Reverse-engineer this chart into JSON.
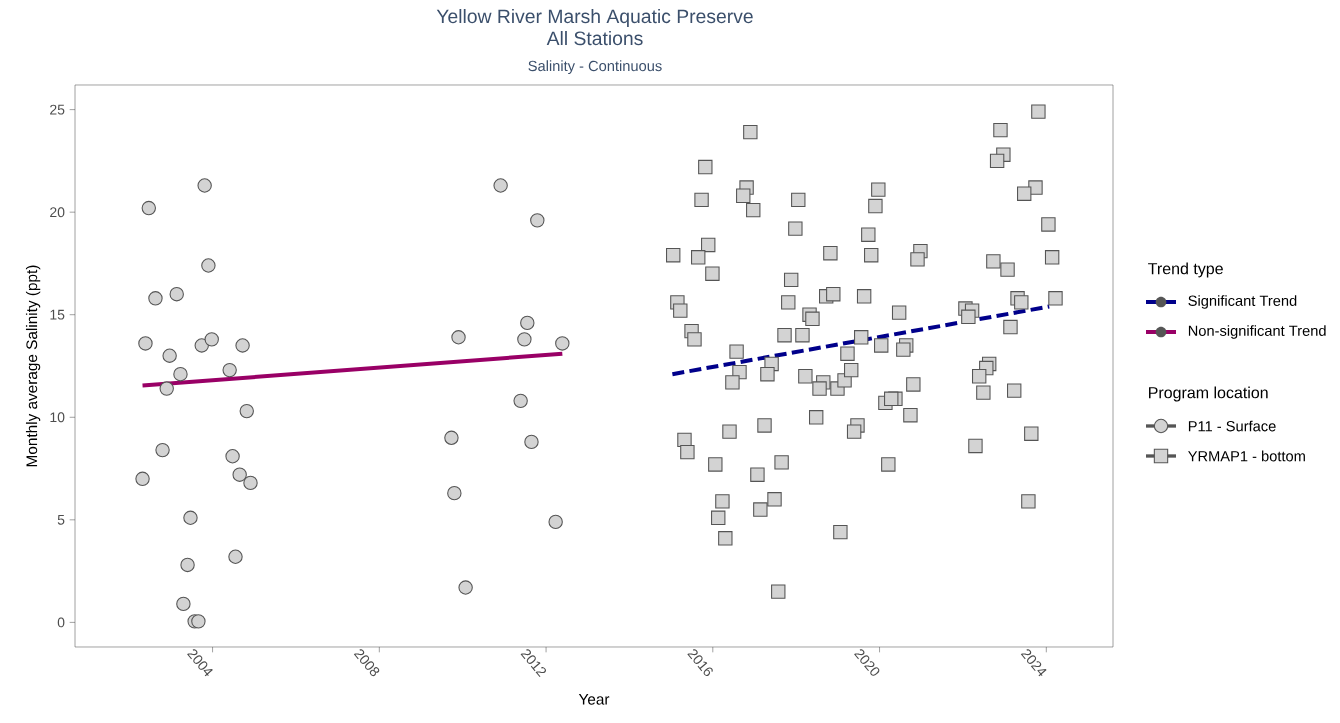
{
  "chart_data": {
    "type": "scatter",
    "title": "Yellow River Marsh Aquatic Preserve",
    "subtitle": "All Stations",
    "annotations": [
      "Salinity - Continuous",
      "Program location"
    ],
    "xlabel": "Year",
    "ylabel": "Monthly average Salinity (ppt)",
    "legend_title": "Trend type",
    "legend": "right",
    "xlim": [
      2000.7,
      2025.6
    ],
    "xticks": [
      2004,
      2008,
      2012,
      2016,
      2020,
      2024
    ],
    "ylim": [
      -1.2,
      26.2
    ],
    "yticks": [
      0,
      5,
      10,
      15,
      20,
      25
    ],
    "series": [
      {
        "name": "P11 - Surface",
        "marker": "circle",
        "color": "#d3d3d3",
        "x": [
          2002.32,
          2002.47,
          2002.39,
          2002.63,
          2002.8,
          2002.9,
          2002.97,
          2003.14,
          2003.23,
          2003.3,
          2003.4,
          2003.47,
          2003.57,
          2003.66,
          2003.74,
          2003.81,
          2003.9,
          2003.98,
          2004.41,
          2004.48,
          2004.55,
          2004.65,
          2004.72,
          2004.82,
          2004.91,
          2009.73,
          2009.8,
          2009.9,
          2010.07,
          2010.91,
          2011.39,
          2011.48,
          2011.55,
          2011.65,
          2011.79,
          2012.23,
          2012.39
        ],
        "values": [
          7.0,
          20.2,
          13.6,
          15.8,
          8.4,
          11.4,
          13.0,
          16.0,
          12.1,
          0.9,
          2.8,
          5.1,
          0.05,
          0.05,
          13.5,
          21.3,
          17.4,
          13.8,
          12.3,
          8.1,
          3.2,
          7.2,
          13.5,
          10.3,
          6.8,
          9.0,
          6.3,
          13.9,
          1.7,
          21.3,
          10.8,
          13.8,
          14.6,
          8.8,
          19.6,
          4.9,
          13.6
        ]
      },
      {
        "name": "YRMAP1 - bottom",
        "marker": "square",
        "color": "#d3d3d3",
        "x": [
          2016.9,
          2015.82,
          2015.73,
          2016.81,
          2016.73,
          2016.97,
          2018.05,
          2017.98,
          2015.89,
          2015.05,
          2015.65,
          2015.99,
          2018.82,
          2017.88,
          2019.73,
          2019.8,
          2015.15,
          2015.22,
          2017.81,
          2018.72,
          2018.89,
          2019.63,
          2018.32,
          2018.39,
          2015.49,
          2015.56,
          2017.72,
          2018.15,
          2019.56,
          2016.57,
          2019.23,
          2017.41,
          2016.64,
          2017.31,
          2016.47,
          2018.22,
          2018.65,
          2018.56,
          2018.99,
          2019.16,
          2019.32,
          2018.48,
          2019.47,
          2019.39,
          2015.32,
          2015.39,
          2016.4,
          2017.24,
          2016.06,
          2017.07,
          2017.65,
          2016.23,
          2016.13,
          2017.48,
          2017.14,
          2016.3,
          2019.06,
          2017.57,
          2023.81,
          2022.9,
          2022.97,
          2022.82,
          2023.74,
          2023.47,
          2024.05,
          2024.14,
          2022.73,
          2023.07,
          2019.97,
          2019.9,
          2020.98,
          2020.91,
          2020.47,
          2022.06,
          2022.22,
          2022.13,
          2023.31,
          2023.4,
          2024.22,
          2023.14,
          2020.04,
          2020.64,
          2020.57,
          2022.63,
          2022.56,
          2022.39,
          2022.49,
          2023.23,
          2020.81,
          2020.14,
          2020.38,
          2020.28,
          2020.74,
          2022.3,
          2023.64,
          2020.21,
          2023.57
        ],
        "values": [
          23.9,
          22.2,
          20.6,
          21.2,
          20.8,
          20.1,
          20.6,
          19.2,
          18.4,
          17.9,
          17.8,
          17.0,
          18.0,
          16.7,
          18.9,
          17.9,
          15.6,
          15.2,
          15.6,
          15.9,
          16.0,
          15.9,
          15.0,
          14.8,
          14.2,
          13.8,
          14.0,
          14.0,
          13.9,
          13.2,
          13.1,
          12.6,
          12.2,
          12.1,
          11.7,
          12.0,
          11.7,
          11.4,
          11.4,
          11.8,
          12.3,
          10.0,
          9.6,
          9.3,
          8.9,
          8.3,
          9.3,
          9.6,
          7.7,
          7.2,
          7.8,
          5.9,
          5.1,
          6.0,
          5.5,
          4.1,
          4.4,
          1.5,
          24.9,
          24.0,
          22.8,
          22.5,
          21.2,
          20.9,
          19.4,
          17.8,
          17.6,
          17.2,
          21.1,
          20.3,
          18.1,
          17.7,
          15.1,
          15.3,
          15.2,
          14.9,
          15.8,
          15.6,
          15.8,
          14.4,
          13.5,
          13.5,
          13.3,
          12.6,
          12.4,
          12.0,
          11.2,
          11.3,
          11.6,
          10.7,
          10.9,
          10.9,
          10.1,
          8.6,
          9.2,
          7.7,
          5.9
        ]
      },
      {
        "name": "Significant Trend",
        "type": "line",
        "line_style": "dashed",
        "color": "#00008b",
        "x": [
          2015.03,
          2024.07
        ],
        "values": [
          12.1,
          15.4
        ]
      },
      {
        "name": "Non-significant Trend",
        "type": "line",
        "line_style": "solid",
        "color": "#990066",
        "x": [
          2002.32,
          2012.39
        ],
        "values": [
          11.55,
          13.1
        ]
      }
    ]
  }
}
